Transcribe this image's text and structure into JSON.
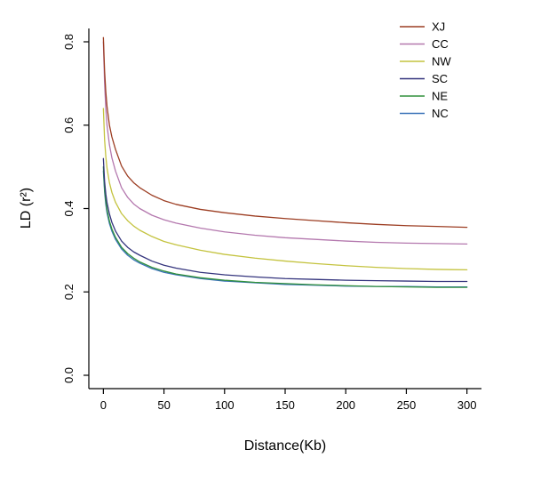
{
  "chart_data": {
    "type": "line",
    "title": "",
    "xlabel": "Distance(Kb)",
    "ylabel": "LD (r²)",
    "xlim": [
      0,
      300
    ],
    "ylim": [
      0,
      0.8
    ],
    "x_ticks": [
      0,
      50,
      100,
      150,
      200,
      250,
      300
    ],
    "y_ticks": [
      0.0,
      0.2,
      0.4,
      0.6,
      0.8
    ],
    "grid": false,
    "legend_position": "top-right",
    "x": [
      0,
      1,
      2,
      3,
      5,
      7,
      10,
      15,
      20,
      25,
      30,
      40,
      50,
      60,
      80,
      100,
      125,
      150,
      175,
      200,
      225,
      250,
      275,
      300
    ],
    "series": [
      {
        "name": "XJ",
        "color": "#9c3d22",
        "values": [
          0.81,
          0.73,
          0.68,
          0.645,
          0.6,
          0.572,
          0.542,
          0.502,
          0.478,
          0.462,
          0.45,
          0.432,
          0.419,
          0.41,
          0.398,
          0.39,
          0.382,
          0.376,
          0.371,
          0.366,
          0.362,
          0.359,
          0.357,
          0.355
        ]
      },
      {
        "name": "CC",
        "color": "#b478ae",
        "values": [
          0.8,
          0.7,
          0.64,
          0.6,
          0.553,
          0.522,
          0.49,
          0.45,
          0.427,
          0.411,
          0.4,
          0.384,
          0.373,
          0.365,
          0.353,
          0.344,
          0.336,
          0.33,
          0.326,
          0.322,
          0.319,
          0.317,
          0.316,
          0.315
        ]
      },
      {
        "name": "NW",
        "color": "#c4c33f",
        "values": [
          0.64,
          0.565,
          0.525,
          0.497,
          0.462,
          0.439,
          0.415,
          0.388,
          0.371,
          0.358,
          0.348,
          0.333,
          0.321,
          0.313,
          0.3,
          0.29,
          0.281,
          0.274,
          0.268,
          0.263,
          0.259,
          0.256,
          0.254,
          0.253
        ]
      },
      {
        "name": "SC",
        "color": "#34347d",
        "values": [
          0.52,
          0.465,
          0.435,
          0.414,
          0.387,
          0.367,
          0.346,
          0.322,
          0.307,
          0.296,
          0.288,
          0.274,
          0.264,
          0.257,
          0.247,
          0.241,
          0.236,
          0.232,
          0.23,
          0.228,
          0.227,
          0.226,
          0.225,
          0.225
        ]
      },
      {
        "name": "NE",
        "color": "#31913b",
        "values": [
          0.5,
          0.447,
          0.418,
          0.397,
          0.37,
          0.351,
          0.331,
          0.307,
          0.292,
          0.281,
          0.272,
          0.259,
          0.25,
          0.243,
          0.234,
          0.228,
          0.223,
          0.22,
          0.217,
          0.215,
          0.213,
          0.212,
          0.211,
          0.211
        ]
      },
      {
        "name": "NC",
        "color": "#3a72b8",
        "values": [
          0.49,
          0.44,
          0.41,
          0.39,
          0.364,
          0.346,
          0.326,
          0.303,
          0.288,
          0.277,
          0.269,
          0.256,
          0.247,
          0.241,
          0.232,
          0.226,
          0.222,
          0.218,
          0.216,
          0.214,
          0.213,
          0.213,
          0.212,
          0.212
        ]
      }
    ]
  }
}
